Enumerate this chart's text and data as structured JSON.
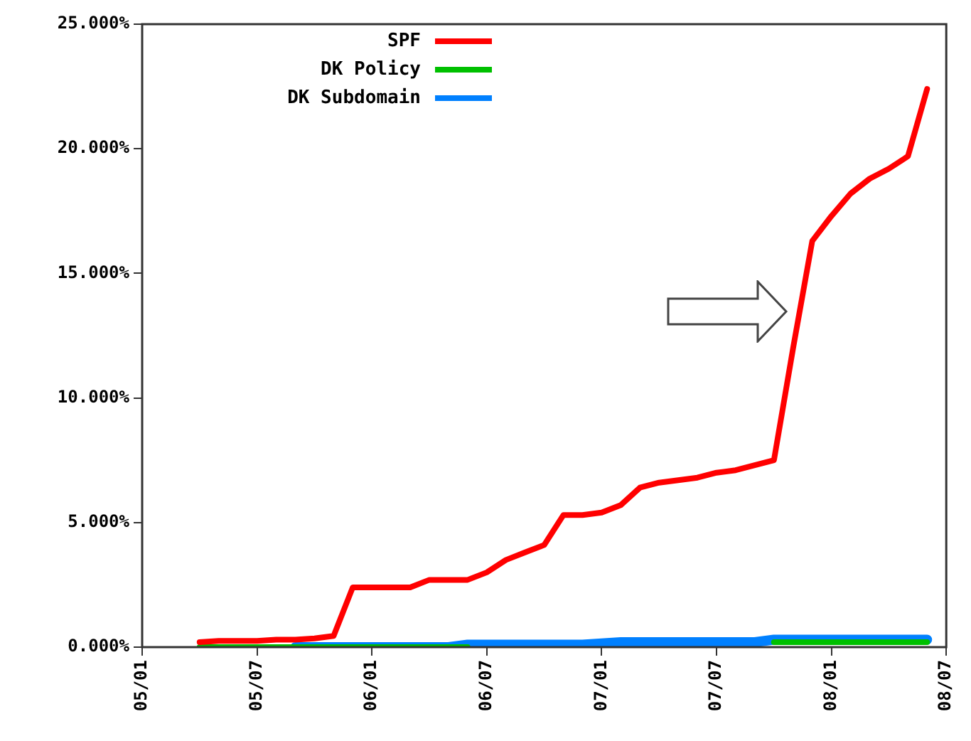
{
  "chart_data": {
    "type": "line",
    "x": [
      "2005-04",
      "2005-05",
      "2005-06",
      "2005-07",
      "2005-08",
      "2005-09",
      "2005-10",
      "2005-11",
      "2005-12",
      "2006-01",
      "2006-02",
      "2006-03",
      "2006-04",
      "2006-05",
      "2006-06",
      "2006-07",
      "2006-08",
      "2006-09",
      "2006-10",
      "2006-11",
      "2006-12",
      "2007-01",
      "2007-02",
      "2007-03",
      "2007-04",
      "2007-05",
      "2007-06",
      "2007-07",
      "2007-08",
      "2007-09",
      "2007-10",
      "2007-11",
      "2007-12",
      "2008-01",
      "2008-02",
      "2008-03",
      "2008-04",
      "2008-05",
      "2008-06"
    ],
    "series": [
      {
        "name": "SPF",
        "color": "#ff0000",
        "values": [
          0.2,
          0.25,
          0.25,
          0.25,
          0.3,
          0.3,
          0.35,
          0.45,
          2.4,
          2.4,
          2.4,
          2.4,
          2.7,
          2.7,
          2.7,
          3.0,
          3.5,
          3.8,
          4.1,
          5.3,
          5.3,
          5.4,
          5.7,
          6.4,
          6.6,
          6.7,
          6.8,
          7.0,
          7.1,
          7.3,
          7.5,
          12.0,
          16.3,
          17.3,
          18.2,
          18.8,
          19.2,
          19.7,
          22.4
        ]
      },
      {
        "name": "DK Policy",
        "color": "#00c000",
        "values": [
          0,
          0,
          0,
          0,
          0,
          0,
          0,
          0,
          0,
          0,
          0,
          0,
          0,
          0,
          0,
          null,
          null,
          null,
          null,
          null,
          null,
          null,
          null,
          null,
          null,
          null,
          null,
          null,
          null,
          null,
          0.2,
          0.2,
          0.2,
          0.2,
          0.2,
          0.2,
          0.2,
          0.2,
          0.2
        ]
      },
      {
        "name": "DK Subdomain",
        "color": "#0080ff",
        "values": [
          null,
          null,
          null,
          null,
          null,
          0,
          0,
          0,
          0,
          0,
          0,
          0,
          0,
          0,
          0.1,
          0.1,
          0.1,
          0.1,
          0.1,
          0.1,
          0.1,
          0.15,
          0.2,
          0.2,
          0.2,
          0.2,
          0.2,
          0.2,
          0.2,
          0.2,
          0.3,
          0.3,
          0.3,
          0.3,
          0.3,
          0.3,
          0.3,
          0.3,
          0.3
        ]
      }
    ],
    "xlim": [
      "2005-01",
      "2008-07"
    ],
    "xticks": [
      {
        "value": "2005-01",
        "label": "05/01"
      },
      {
        "value": "2005-07",
        "label": "05/07"
      },
      {
        "value": "2006-01",
        "label": "06/01"
      },
      {
        "value": "2006-07",
        "label": "06/07"
      },
      {
        "value": "2007-01",
        "label": "07/01"
      },
      {
        "value": "2007-07",
        "label": "07/07"
      },
      {
        "value": "2008-01",
        "label": "08/01"
      },
      {
        "value": "2008-07",
        "label": "08/07"
      }
    ],
    "ylim": [
      0,
      25
    ],
    "yticks": [
      {
        "value": 0,
        "label": "0.000%"
      },
      {
        "value": 5,
        "label": "5.000%"
      },
      {
        "value": 10,
        "label": "10.000%"
      },
      {
        "value": 15,
        "label": "15.000%"
      },
      {
        "value": 20,
        "label": "20.000%"
      },
      {
        "value": 25,
        "label": "25.000%"
      }
    ],
    "grid": false,
    "legend": "top left",
    "marker": "none",
    "line_style": "solid"
  }
}
